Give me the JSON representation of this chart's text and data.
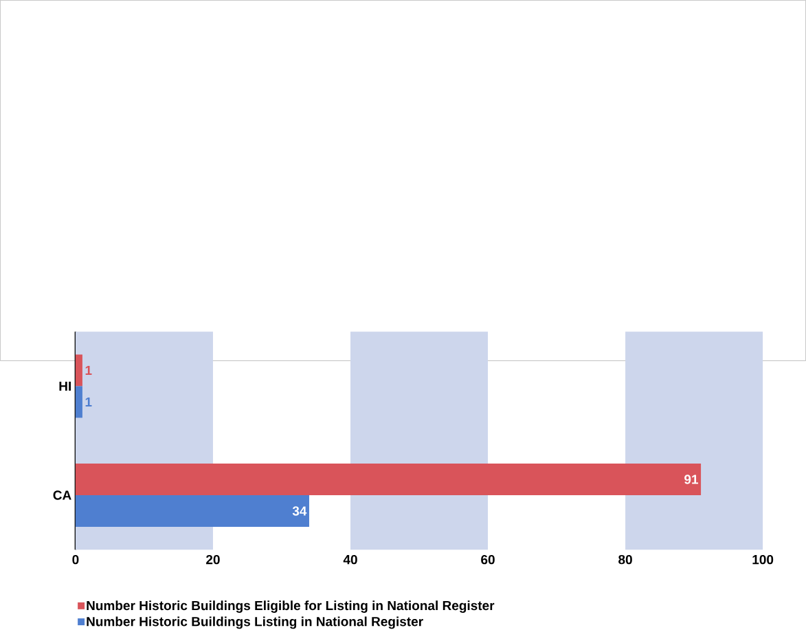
{
  "chart_data": {
    "type": "bar",
    "orientation": "horizontal",
    "categories": [
      "HI",
      "CA"
    ],
    "series": [
      {
        "name": "Number Historic Buildings Eligible for Listing in National Register",
        "color": "#d9545a",
        "values": [
          1,
          91
        ]
      },
      {
        "name": "Number Historic Buildings Listing in National Register",
        "color": "#4f7fd0",
        "values": [
          1,
          34
        ]
      }
    ],
    "xlim": [
      0,
      100
    ],
    "xticks": [
      0,
      20,
      40,
      60,
      80,
      100
    ],
    "bands": [
      {
        "axis": "x",
        "from": 0,
        "to": 20,
        "color": "#cdd6ec"
      },
      {
        "axis": "x",
        "from": 40,
        "to": 60,
        "color": "#cdd6ec"
      },
      {
        "axis": "x",
        "from": 80,
        "to": 100,
        "color": "#cdd6ec"
      }
    ],
    "data_labels": true,
    "legend": "bottom",
    "grid": false
  }
}
